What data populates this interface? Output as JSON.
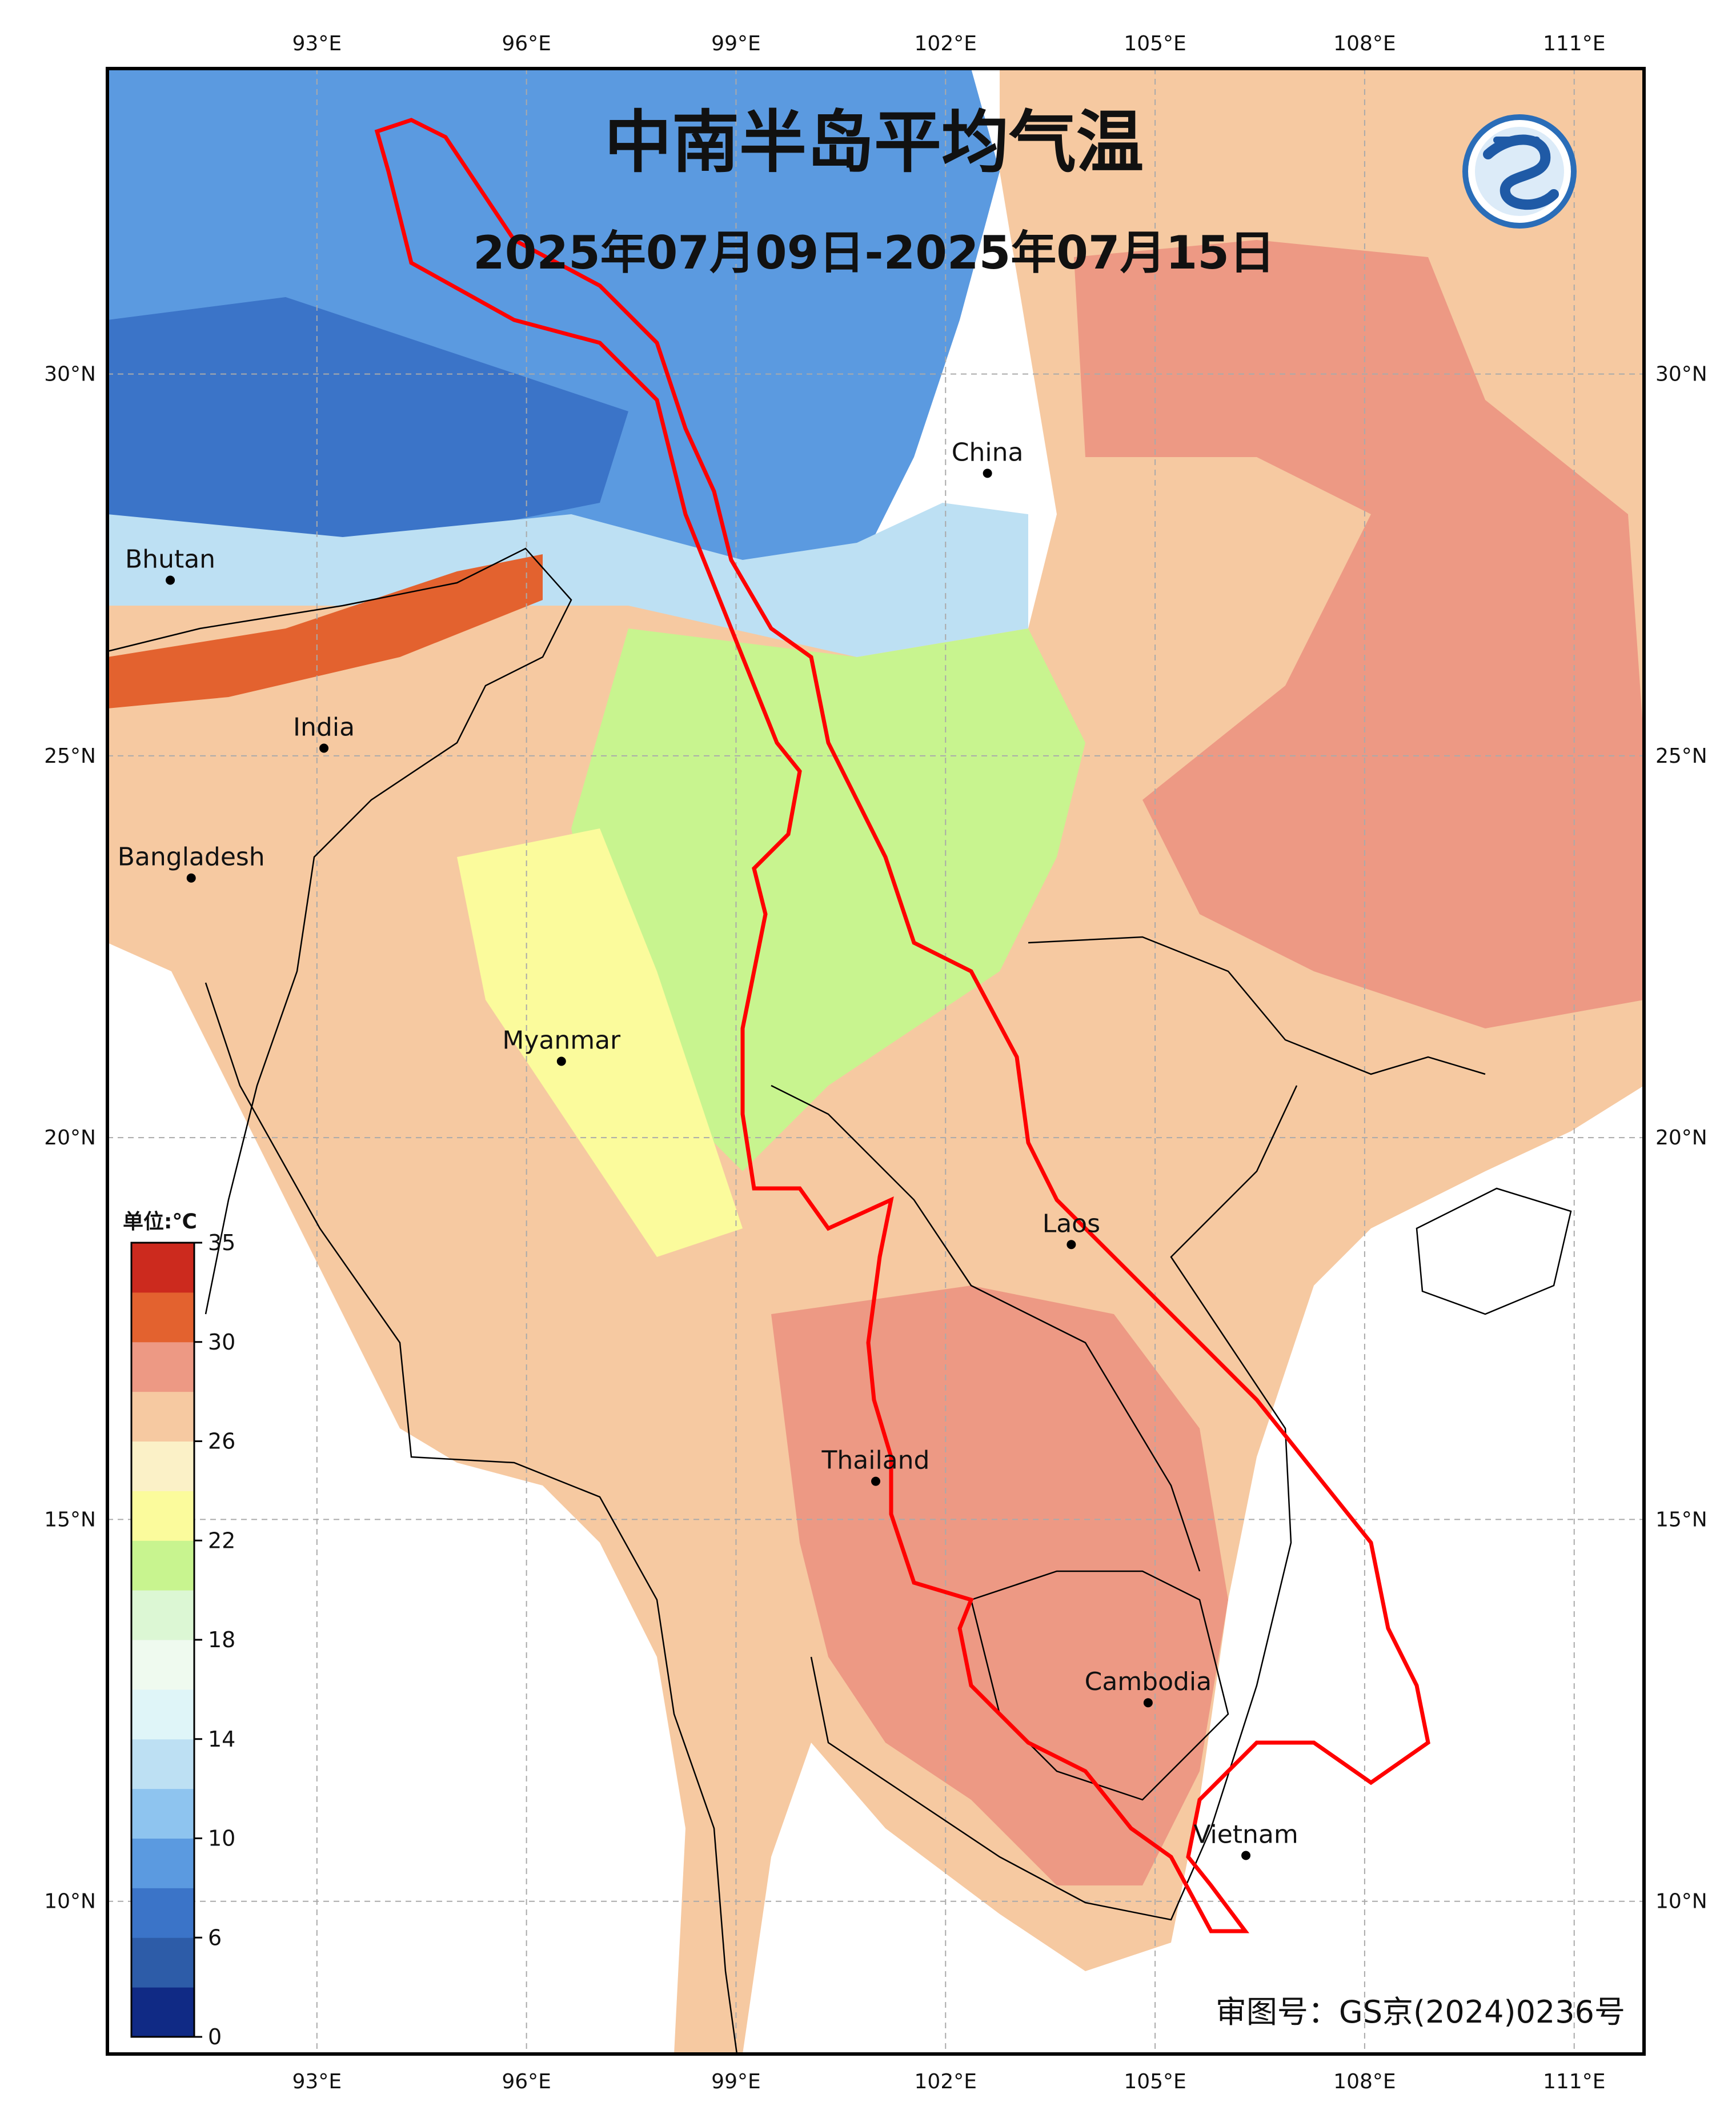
{
  "title": "中南半岛平均气温",
  "subtitle": "2025年07月09日-2025年07月15日",
  "approval_number": "审图号：GS京(2024)0236号",
  "axes": {
    "lon_labels": [
      "93°E",
      "96°E",
      "99°E",
      "102°E",
      "105°E",
      "108°E",
      "111°E"
    ],
    "lat_labels": [
      "30°N",
      "25°N",
      "20°N",
      "15°N",
      "10°N"
    ],
    "lon_values": [
      93,
      96,
      99,
      102,
      105,
      108,
      111
    ],
    "lat_values": [
      30,
      25,
      20,
      15,
      10
    ],
    "lon_range": [
      90,
      112
    ],
    "lat_range": [
      8,
      34
    ],
    "grid": true
  },
  "colorbar": {
    "unit": "单位:℃",
    "tick_labels": [
      "0",
      "6",
      "10",
      "14",
      "18",
      "22",
      "26",
      "30",
      "35"
    ],
    "colors": [
      "#102a85",
      "#2d5ca8",
      "#3b74c8",
      "#5b9ae0",
      "#8ec4ef",
      "#bde0f3",
      "#dff5f8",
      "#effaef",
      "#dcf7d4",
      "#c8f48f",
      "#fbfb9c",
      "#fbf1c7",
      "#f6c9a1",
      "#ed9984",
      "#e3622f",
      "#cc2a1e"
    ]
  },
  "places": [
    {
      "name": "China",
      "lon": 102.6,
      "lat": 28.7
    },
    {
      "name": "Bhutan",
      "lon": 90.9,
      "lat": 27.3
    },
    {
      "name": "India",
      "lon": 93.1,
      "lat": 25.1
    },
    {
      "name": "Bangladesh",
      "lon": 91.2,
      "lat": 23.4
    },
    {
      "name": "Myanmar",
      "lon": 96.5,
      "lat": 21.0
    },
    {
      "name": "Laos",
      "lon": 103.8,
      "lat": 18.6
    },
    {
      "name": "Thailand",
      "lon": 101.0,
      "lat": 15.5
    },
    {
      "name": "Cambodia",
      "lon": 104.9,
      "lat": 12.6
    },
    {
      "name": "Vietnam",
      "lon": 106.3,
      "lat": 10.6
    }
  ],
  "logo": "cma-logo",
  "colors": {
    "basin_outline": "#ff0000",
    "border": "#000000",
    "frame": "#000000"
  }
}
